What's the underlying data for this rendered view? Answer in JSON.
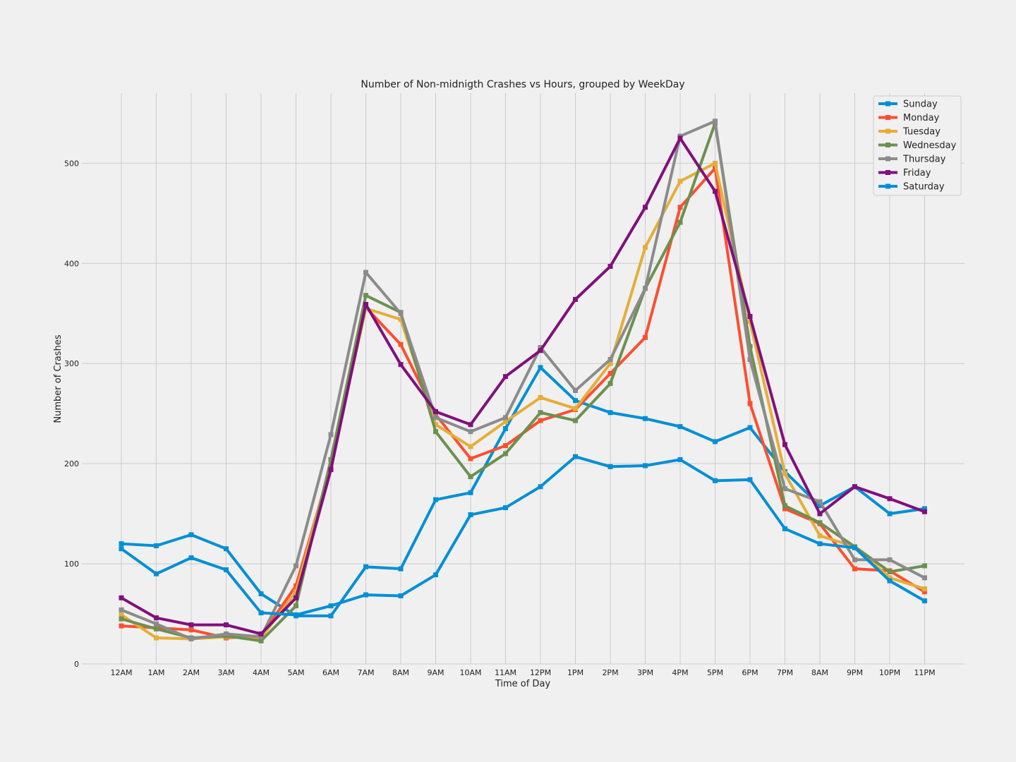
{
  "chart_data": {
    "type": "line",
    "title": "Number of Non-midnigth Crashes vs Hours, grouped by WeekDay",
    "xlabel": "Time of Day",
    "ylabel": "Number of Crashes",
    "categories": [
      "12AM",
      "1AM",
      "2AM",
      "3AM",
      "4AM",
      "5AM",
      "6AM",
      "7AM",
      "8AM",
      "9AM",
      "10AM",
      "11AM",
      "12PM",
      "1PM",
      "2PM",
      "3PM",
      "4PM",
      "5PM",
      "6PM",
      "7PM",
      "8AM",
      "9PM",
      "10PM",
      "11PM"
    ],
    "ylim": [
      0,
      570
    ],
    "yticks": [
      0,
      100,
      200,
      300,
      400,
      500
    ],
    "grid": true,
    "legend_position": "top-right",
    "series": [
      {
        "name": "Sunday",
        "color": "#008fd5",
        "values": [
          120,
          118,
          129,
          115,
          70,
          48,
          48,
          97,
          95,
          164,
          171,
          235,
          296,
          263,
          251,
          245,
          237,
          222,
          236,
          192,
          158,
          177,
          150,
          155
        ]
      },
      {
        "name": "Monday",
        "color": "#fc4f30",
        "values": [
          38,
          36,
          34,
          26,
          28,
          78,
          198,
          356,
          319,
          249,
          205,
          218,
          243,
          254,
          290,
          326,
          456,
          495,
          260,
          155,
          140,
          95,
          93,
          72
        ]
      },
      {
        "name": "Tuesday",
        "color": "#e5ae38",
        "values": [
          49,
          26,
          25,
          27,
          26,
          72,
          200,
          355,
          344,
          239,
          217,
          242,
          266,
          255,
          300,
          416,
          482,
          500,
          342,
          190,
          128,
          117,
          86,
          75
        ]
      },
      {
        "name": "Wednesday",
        "color": "#6d904f",
        "values": [
          45,
          35,
          26,
          28,
          23,
          58,
          204,
          368,
          351,
          232,
          187,
          210,
          251,
          243,
          280,
          375,
          441,
          540,
          317,
          158,
          141,
          117,
          92,
          98
        ]
      },
      {
        "name": "Thursday",
        "color": "#8b8b8b",
        "values": [
          54,
          40,
          25,
          30,
          27,
          98,
          229,
          391,
          350,
          246,
          232,
          246,
          316,
          273,
          304,
          375,
          527,
          542,
          304,
          175,
          162,
          104,
          104,
          86
        ]
      },
      {
        "name": "Friday",
        "color": "#810f7c",
        "values": [
          66,
          46,
          39,
          39,
          30,
          66,
          194,
          359,
          299,
          252,
          239,
          287,
          313,
          364,
          397,
          456,
          525,
          472,
          347,
          219,
          150,
          177,
          165,
          152
        ]
      },
      {
        "name": "Saturday",
        "color": "#008fd5",
        "values": [
          115,
          90,
          106,
          94,
          51,
          49,
          58,
          69,
          68,
          89,
          149,
          156,
          177,
          207,
          197,
          198,
          204,
          183,
          184,
          135,
          120,
          116,
          83,
          63
        ]
      }
    ]
  }
}
